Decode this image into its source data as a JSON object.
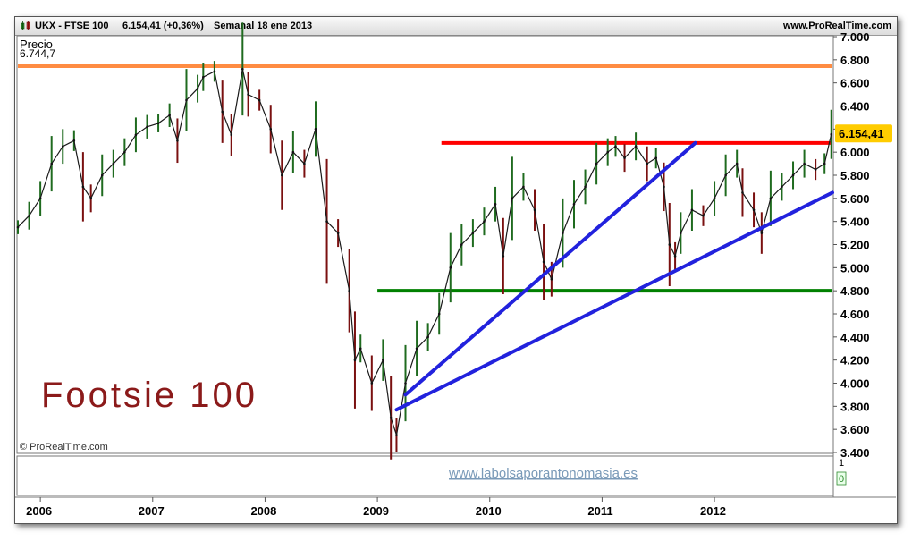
{
  "header": {
    "symbol": "UKX - FTSE 100",
    "last": "6.154,41 (+0,36%)",
    "period": "Semanal  18 ene 2013",
    "site": "www.ProRealTime.com"
  },
  "panel": {
    "price_label": "Precio",
    "top_value": "6.744,7",
    "last_price_tag": "6.154,41",
    "copyright": "© ProRealTime.com",
    "watermark": "www.labolsaporantonomasia.es",
    "title_overlay": "Footsie 100",
    "lower_scale_top": "1",
    "lower_scale_bottom": "0"
  },
  "colors": {
    "orange_line": "#ff8c42",
    "red_line": "#ff0000",
    "green_line": "#008000",
    "trend_lines": "#2222dd",
    "title": "#8b1a1a",
    "watermark": "#7a9ab8",
    "last_tag_bg": "#ffcc00"
  },
  "chart_data": {
    "type": "line",
    "instrument": "UKX - FTSE 100",
    "timeframe": "Semanal",
    "ylim": [
      3400,
      7000
    ],
    "xlim": [
      2005.8,
      2013.05
    ],
    "y_ticks": [
      3400,
      3600,
      3800,
      4000,
      4200,
      4400,
      4600,
      4800,
      5000,
      5200,
      5400,
      5600,
      5800,
      6000,
      6200,
      6400,
      6600,
      6800,
      7000
    ],
    "y_tick_labels": [
      "3.400",
      "3.600",
      "3.800",
      "4.000",
      "4.200",
      "4.400",
      "4.600",
      "4.800",
      "5.000",
      "5.200",
      "5.400",
      "5.600",
      "5.800",
      "6.000",
      "6.200",
      "6.400",
      "6.600",
      "6.800",
      "7.000"
    ],
    "x_ticks": [
      2006,
      2007,
      2008,
      2009,
      2010,
      2011,
      2012
    ],
    "x_tick_labels": [
      "2006",
      "2007",
      "2008",
      "2009",
      "2010",
      "2011",
      "2012"
    ],
    "x": [
      2005.8,
      2005.9,
      2006.0,
      2006.1,
      2006.2,
      2006.3,
      2006.38,
      2006.45,
      2006.55,
      2006.65,
      2006.75,
      2006.85,
      2006.95,
      2007.05,
      2007.15,
      2007.22,
      2007.3,
      2007.4,
      2007.45,
      2007.55,
      2007.62,
      2007.7,
      2007.8,
      2007.85,
      2007.95,
      2008.05,
      2008.15,
      2008.25,
      2008.35,
      2008.45,
      2008.55,
      2008.65,
      2008.75,
      2008.8,
      2008.85,
      2008.95,
      2009.05,
      2009.12,
      2009.17,
      2009.25,
      2009.35,
      2009.45,
      2009.55,
      2009.65,
      2009.75,
      2009.85,
      2009.95,
      2010.05,
      2010.12,
      2010.2,
      2010.3,
      2010.4,
      2010.48,
      2010.55,
      2010.65,
      2010.75,
      2010.85,
      2010.95,
      2011.05,
      2011.12,
      2011.2,
      2011.3,
      2011.4,
      2011.48,
      2011.55,
      2011.6,
      2011.65,
      2011.7,
      2011.8,
      2011.9,
      2012.0,
      2012.1,
      2012.2,
      2012.25,
      2012.35,
      2012.42,
      2012.5,
      2012.6,
      2012.7,
      2012.8,
      2012.9,
      2012.98,
      2013.04
    ],
    "series": [
      {
        "values": [
          5350,
          5450,
          5600,
          5900,
          6050,
          6100,
          5700,
          5600,
          5800,
          5900,
          6000,
          6150,
          6220,
          6250,
          6320,
          6100,
          6450,
          6550,
          6650,
          6700,
          6350,
          6150,
          6720,
          6500,
          6450,
          6200,
          5800,
          6000,
          5900,
          6200,
          5400,
          5300,
          4800,
          4200,
          4300,
          4000,
          4200,
          3700,
          3550,
          4000,
          4300,
          4400,
          4600,
          5000,
          5200,
          5300,
          5400,
          5550,
          5100,
          5600,
          5700,
          5500,
          5050,
          4900,
          5300,
          5550,
          5700,
          5900,
          6000,
          6050,
          5950,
          6050,
          5900,
          5950,
          5700,
          5200,
          5100,
          5300,
          5500,
          5450,
          5600,
          5800,
          5900,
          5650,
          5500,
          5300,
          5600,
          5700,
          5800,
          5900,
          5850,
          5900,
          6154.41
        ]
      }
    ],
    "annotations": {
      "orange_level": 6744.7,
      "red_level": 6080,
      "green_level": 4800,
      "trend_line_1": {
        "from": [
          2009.25,
          3900
        ],
        "to": [
          2011.83,
          6080
        ]
      },
      "trend_line_2": {
        "from": [
          2009.17,
          3770
        ],
        "to": [
          2013.05,
          5650
        ]
      }
    },
    "last_value": 6154.41,
    "legend": "none",
    "grid": false
  }
}
